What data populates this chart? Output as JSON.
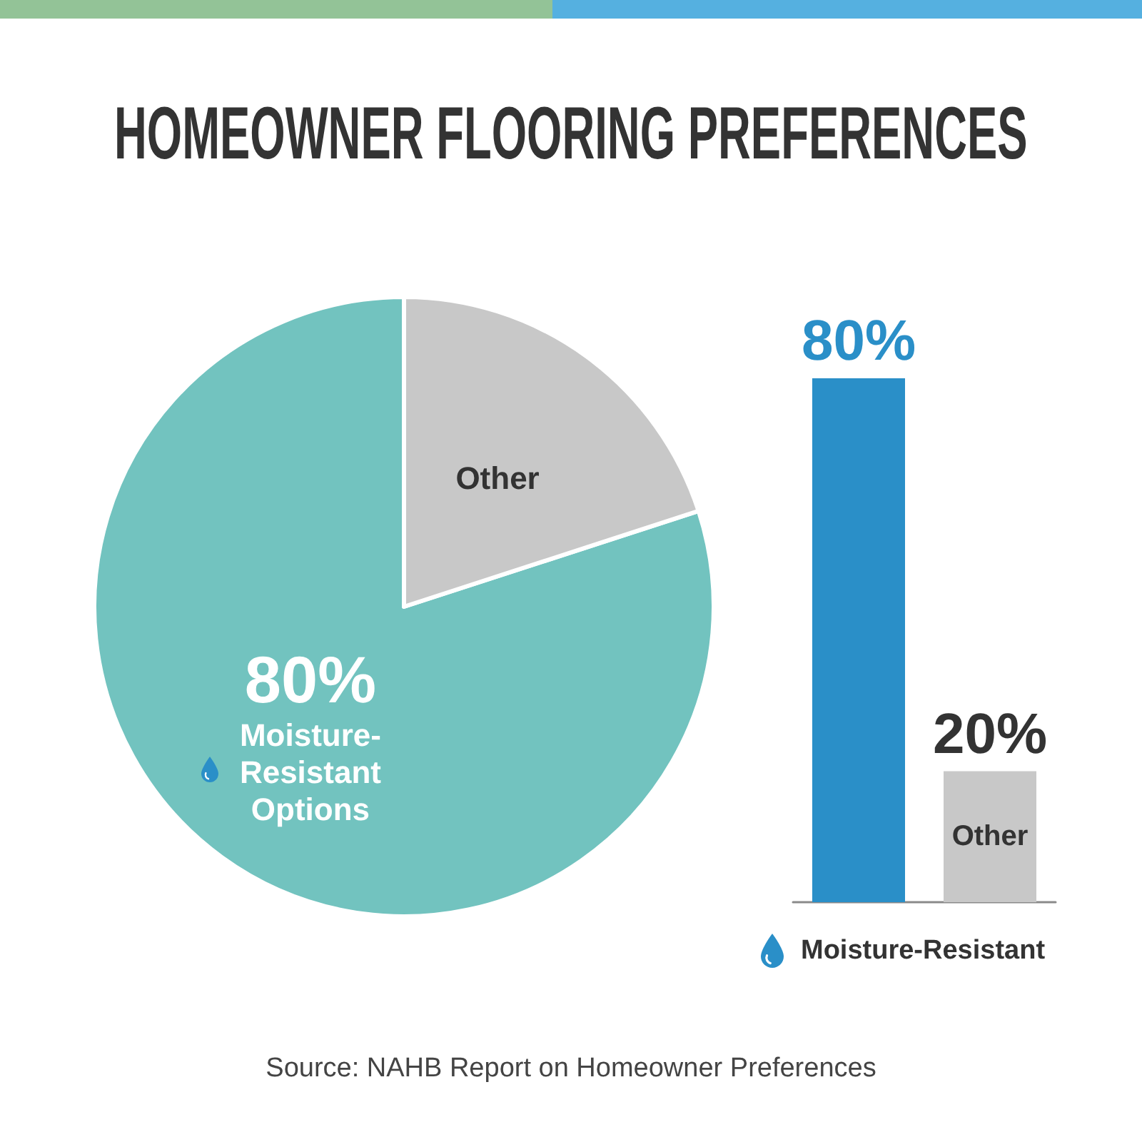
{
  "chart_data": [
    {
      "type": "pie",
      "title": "HOMEOWNER FLOORING PREFERENCES",
      "categories": [
        "Moisture-Resistant Options",
        "Other"
      ],
      "values": [
        80,
        20
      ],
      "colors": [
        "#72c3bf",
        "#c8c8c8"
      ],
      "value_labels": [
        "80%",
        null
      ],
      "annotations": [
        "Source: NAHB Report on Homeowner Preferences"
      ]
    },
    {
      "type": "bar",
      "categories": [
        "Moisture-Resistant",
        "Other"
      ],
      "values": [
        80,
        20
      ],
      "colors": [
        "#2a8fc8",
        "#c8c8c8"
      ],
      "value_labels": [
        "80%",
        "20%"
      ]
    }
  ]
}
